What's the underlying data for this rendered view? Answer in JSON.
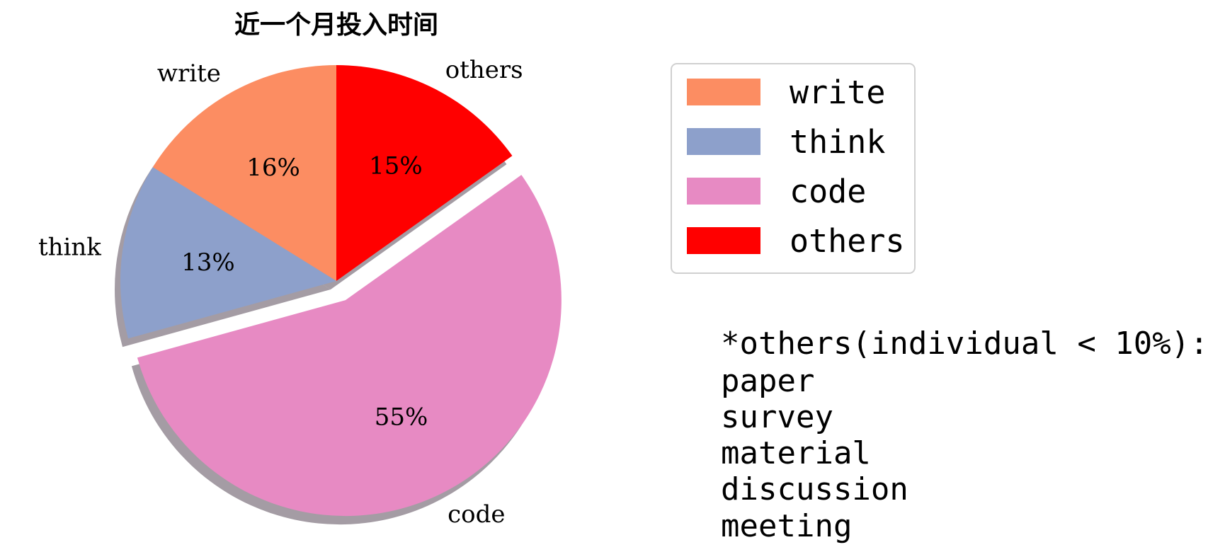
{
  "chart_data": {
    "type": "pie",
    "title": "近一个月投入时间",
    "slices": [
      {
        "label": "write",
        "value": 16,
        "pct_label": "16%",
        "color": "#fc8d62",
        "explode": false
      },
      {
        "label": "think",
        "value": 13,
        "pct_label": "13%",
        "color": "#8da0cb",
        "explode": false
      },
      {
        "label": "code",
        "value": 55,
        "pct_label": "55%",
        "color": "#e78ac3",
        "explode": true
      },
      {
        "label": "others",
        "value": 15,
        "pct_label": "15%",
        "color": "#ff0000",
        "explode": false
      }
    ],
    "start_angle_deg": 90,
    "direction": "counterclockwise",
    "shadow": true,
    "legend": {
      "placement": "right",
      "entries": [
        "write",
        "think",
        "code",
        "others"
      ]
    },
    "note": {
      "heading": "*others(individual < 10%):",
      "items": [
        "paper",
        "survey",
        "material",
        "discussion",
        "meeting"
      ]
    }
  }
}
